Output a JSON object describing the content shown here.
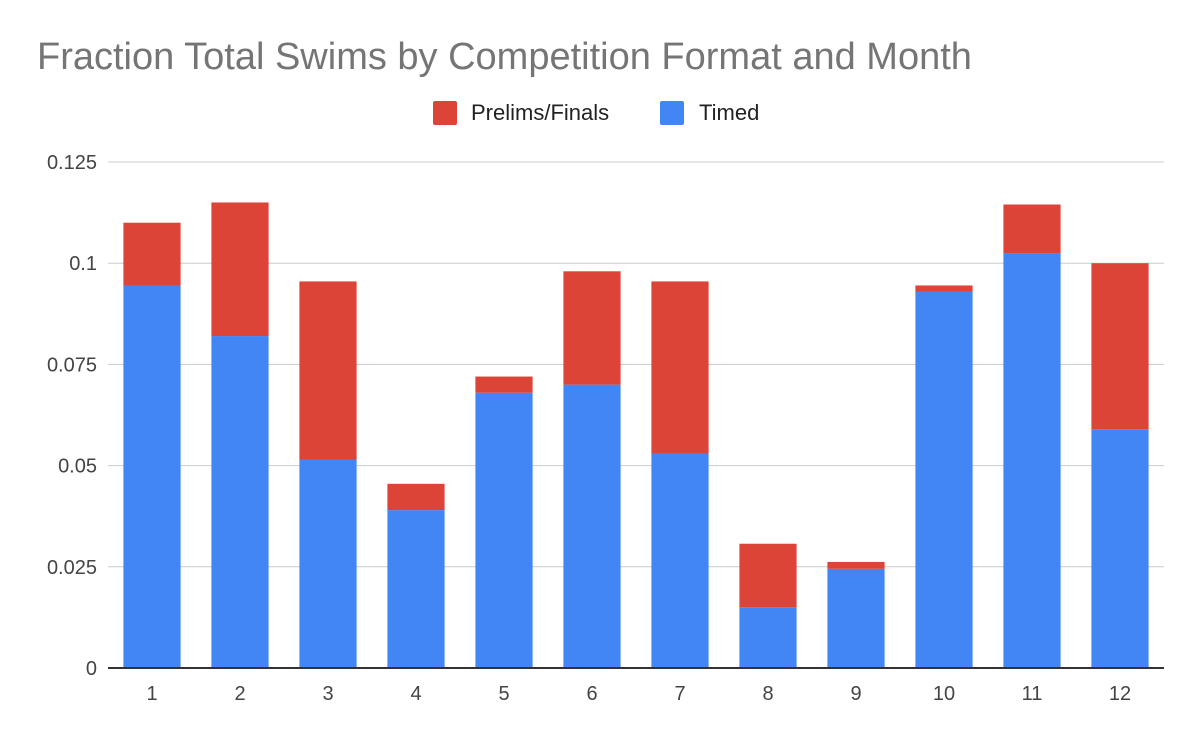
{
  "chart_data": {
    "type": "bar",
    "stacked": true,
    "title": "Fraction Total Swims by Competition Format and Month",
    "xlabel": "",
    "ylabel": "",
    "ylim": [
      0,
      0.125
    ],
    "yticks": [
      "0",
      "0.025",
      "0.05",
      "0.075",
      "0.1",
      "0.125"
    ],
    "ytick_values": [
      0,
      0.025,
      0.05,
      0.075,
      0.1,
      0.125
    ],
    "categories": [
      "1",
      "2",
      "3",
      "4",
      "5",
      "6",
      "7",
      "8",
      "9",
      "10",
      "11",
      "12"
    ],
    "legend_position": "top",
    "grid": true,
    "series": [
      {
        "name": "Timed",
        "color": "#4285f4",
        "values": [
          0.0945,
          0.082,
          0.0515,
          0.039,
          0.068,
          0.07,
          0.053,
          0.015,
          0.0245,
          0.093,
          0.1025,
          0.059
        ]
      },
      {
        "name": "Prelims/Finals",
        "color": "#db4437",
        "values": [
          0.0155,
          0.033,
          0.044,
          0.0065,
          0.004,
          0.028,
          0.0425,
          0.0157,
          0.0017,
          0.0015,
          0.012,
          0.041
        ]
      }
    ],
    "legend_order": [
      "Prelims/Finals",
      "Timed"
    ]
  }
}
